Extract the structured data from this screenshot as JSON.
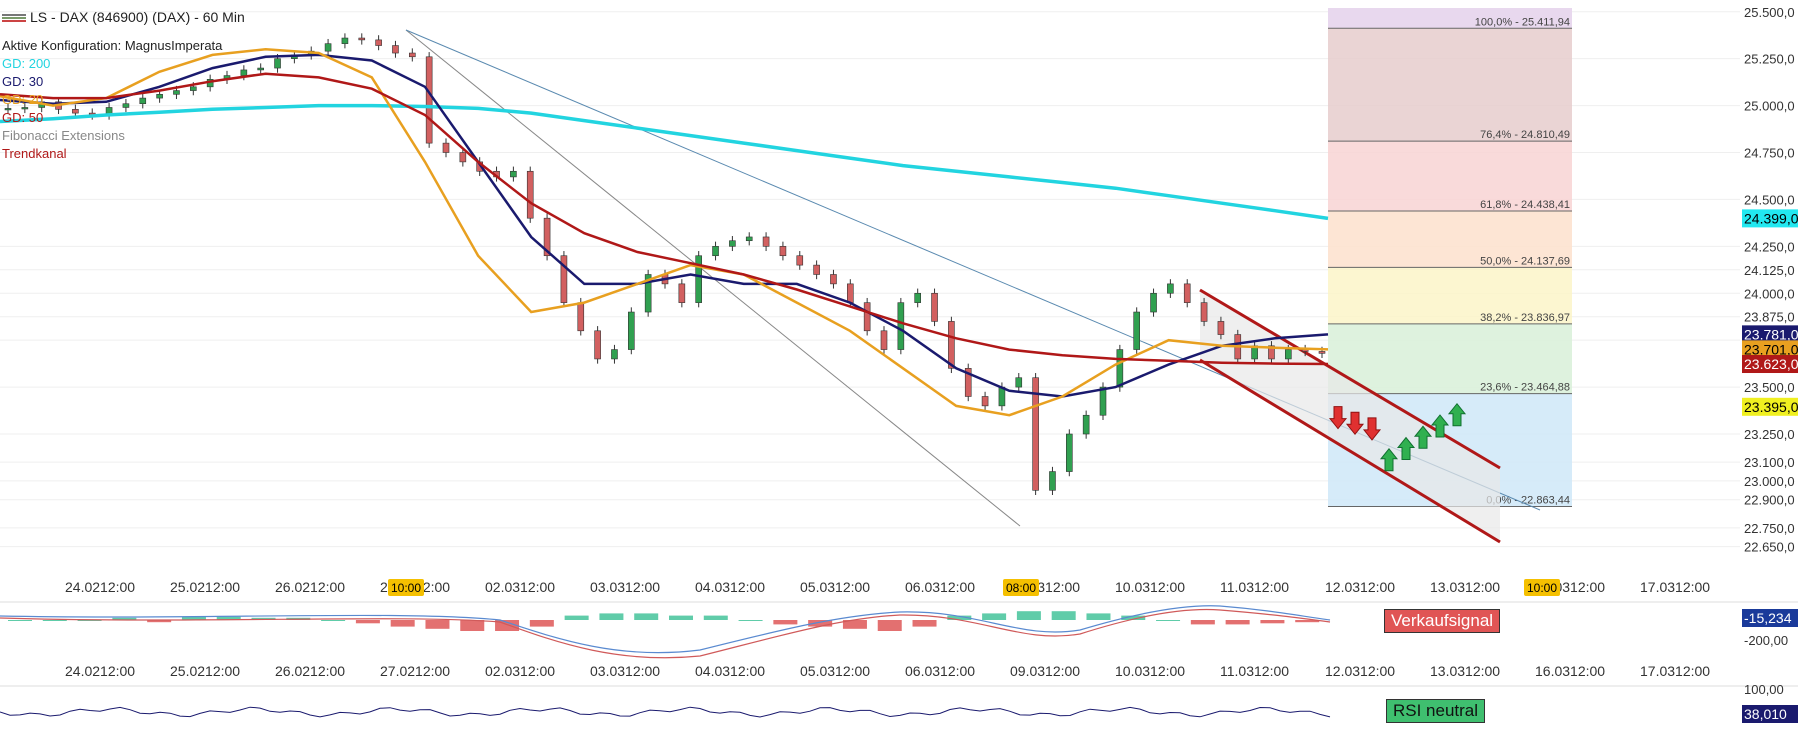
{
  "header": {
    "title": "LS - DAX (846900) (DAX) - 60 Min",
    "config": "Aktive Konfiguration: MagnusImperata"
  },
  "legend": [
    {
      "label": "GD: 200",
      "color": "#22d4e0"
    },
    {
      "label": "GD: 30",
      "color": "#1a1a6e"
    },
    {
      "label": "GD: 20",
      "color": "#e8a020"
    },
    {
      "label": "GD: 50",
      "color": "#b01818"
    },
    {
      "label": "Fibonacci Extensions",
      "color": "#888888"
    },
    {
      "label": "Trendkanal",
      "color": "#b01818"
    }
  ],
  "chart_data": {
    "type": "candlestick",
    "price_axis": {
      "ylim": [
        22600,
        25520
      ],
      "ticks": [
        "25.500,0",
        "25.250,0",
        "25.000,0",
        "24.750,0",
        "24.500,0",
        "24.250,0",
        "24.125,0",
        "24.000,0",
        "23.875,0",
        "23.750,0",
        "23.500,0",
        "23.250,0",
        "23.100,0",
        "23.000,0",
        "22.900,0",
        "22.750,0",
        "22.650,0"
      ],
      "tick_values": [
        25500,
        25250,
        25000,
        24750,
        24500,
        24250,
        24125,
        24000,
        23875,
        23750,
        23500,
        23250,
        23100,
        23000,
        22900,
        22750,
        22650
      ]
    },
    "time_axis": {
      "labels": [
        "24.02",
        "12:00",
        "25.02",
        "12:00",
        "26.02",
        "12:00",
        "27.02",
        "12:00",
        "02.03",
        "12:00",
        "03.03",
        "12:00",
        "04.03",
        "12:00",
        "05.03",
        "12:00",
        "06.03",
        "12:00",
        "09.03",
        "12:00",
        "10.03",
        "12:00",
        "11.03",
        "12:00",
        "12.03",
        "12:00",
        "13.03",
        "12:00",
        "16.03",
        "12:00",
        "17.03",
        "12:00"
      ],
      "markers": [
        "10:00",
        "08:00",
        "10:00"
      ]
    },
    "price_tags": [
      {
        "label": "24.399,0",
        "value": 24399,
        "bg": "#22e8f0",
        "fg": "#000000"
      },
      {
        "label": "23.781,0",
        "value": 23781,
        "bg": "#1a1a6e",
        "fg": "#ffffff"
      },
      {
        "label": "23.701,0",
        "value": 23701,
        "bg": "#e8a020",
        "fg": "#000000"
      },
      {
        "label": "23.623,0",
        "value": 23623,
        "bg": "#b01818",
        "fg": "#ffffff"
      },
      {
        "label": "23.395,0",
        "value": 23395,
        "bg": "#f0f020",
        "fg": "#000000"
      }
    ],
    "fibonacci": [
      {
        "label": "100,0% - 25.411,94",
        "value": 25411.94
      },
      {
        "label": "76,4% - 24.810,49",
        "value": 24810.49
      },
      {
        "label": "61,8% - 24.438,41",
        "value": 24438.41
      },
      {
        "label": "50,0% - 24.137,69",
        "value": 24137.69
      },
      {
        "label": "38,2% - 23.836,97",
        "value": 23836.97
      },
      {
        "label": "23,6% - 23.464,88",
        "value": 23464.88
      },
      {
        "label": "0,0% - 22.863,44",
        "value": 22863.44
      }
    ],
    "fib_zone_colors": [
      "#e8d8ee",
      "#e6cccc",
      "#f8d4d4",
      "#fde0cc",
      "#fbf4c8",
      "#d8f0d8",
      "#cfe8f8"
    ],
    "close_series": [
      24985,
      24990,
      25020,
      24980,
      24960,
      24950,
      24990,
      25010,
      25040,
      25060,
      25080,
      25100,
      25140,
      25160,
      25190,
      25200,
      25250,
      25270,
      25290,
      25330,
      25360,
      25350,
      25320,
      25280,
      25260,
      24800,
      24750,
      24700,
      24650,
      24620,
      24650,
      24400,
      24200,
      23950,
      23800,
      23650,
      23700,
      23900,
      24100,
      24050,
      23950,
      24200,
      24250,
      24280,
      24300,
      24250,
      24200,
      24150,
      24100,
      24050,
      23950,
      23800,
      23700,
      23950,
      24000,
      23850,
      23600,
      23450,
      23400,
      23500,
      23550,
      22950,
      23050,
      23250,
      23350,
      23500,
      23700,
      23900,
      24000,
      24050,
      23950,
      23850,
      23780,
      23650,
      23720,
      23650,
      23700,
      23690,
      23680
    ],
    "ma_series": [
      {
        "name": "GD: 200",
        "color": "#22d4e0",
        "values": [
          24915,
          24930,
          24950,
          24965,
          24980,
          24990,
          25000,
          25000,
          24995,
          24985,
          24960,
          24920,
          24880,
          24840,
          24800,
          24760,
          24720,
          24680,
          24650,
          24620,
          24590,
          24560,
          24520,
          24480,
          24440,
          24399
        ]
      },
      {
        "name": "GD: 30",
        "color": "#1a1a6e",
        "values": [
          25030,
          25010,
          25020,
          25100,
          25200,
          25260,
          25270,
          25240,
          25100,
          24700,
          24300,
          24050,
          24050,
          24100,
          24050,
          24050,
          23950,
          23800,
          23600,
          23480,
          23450,
          23500,
          23620,
          23720,
          23760,
          23781
        ]
      },
      {
        "name": "GD: 20",
        "color": "#e8a020",
        "values": [
          25050,
          25000,
          25040,
          25180,
          25270,
          25300,
          25280,
          25150,
          24700,
          24200,
          23900,
          23950,
          24050,
          24150,
          24100,
          23950,
          23800,
          23600,
          23400,
          23350,
          23450,
          23620,
          23750,
          23720,
          23710,
          23701
        ]
      },
      {
        "name": "GD: 50",
        "color": "#b01818",
        "values": [
          25060,
          25040,
          25040,
          25080,
          25130,
          25170,
          25150,
          25090,
          24950,
          24700,
          24480,
          24320,
          24220,
          24160,
          24100,
          24020,
          23930,
          23840,
          23760,
          23700,
          23670,
          23650,
          23640,
          23630,
          23625,
          23623
        ]
      }
    ],
    "signals": [
      {
        "dir": "down",
        "color": "#e03030"
      },
      {
        "dir": "down",
        "color": "#e03030"
      },
      {
        "dir": "down",
        "color": "#e03030"
      },
      {
        "dir": "up",
        "color": "#30b050"
      },
      {
        "dir": "up",
        "color": "#30b050"
      },
      {
        "dir": "up",
        "color": "#30b050"
      },
      {
        "dir": "up",
        "color": "#30b050"
      },
      {
        "dir": "up",
        "color": "#30b050"
      }
    ]
  },
  "macd_panel": {
    "signal_label": "Verkaufsignal",
    "value_tag": "-15,234",
    "axis_label": "-200,00",
    "histogram": [
      0,
      0,
      0,
      2,
      -2,
      3,
      3,
      2,
      2,
      0,
      -3,
      -6,
      -8,
      -10,
      -10,
      -6,
      4,
      6,
      6,
      4,
      4,
      0,
      -4,
      -6,
      -8,
      -10,
      -6,
      4,
      6,
      8,
      8,
      6,
      4,
      0,
      -4,
      -4,
      -3,
      -2
    ]
  },
  "rsi_panel": {
    "signal_label": "RSI neutral",
    "value_tag": "38,010",
    "axis_label": "100,00"
  }
}
